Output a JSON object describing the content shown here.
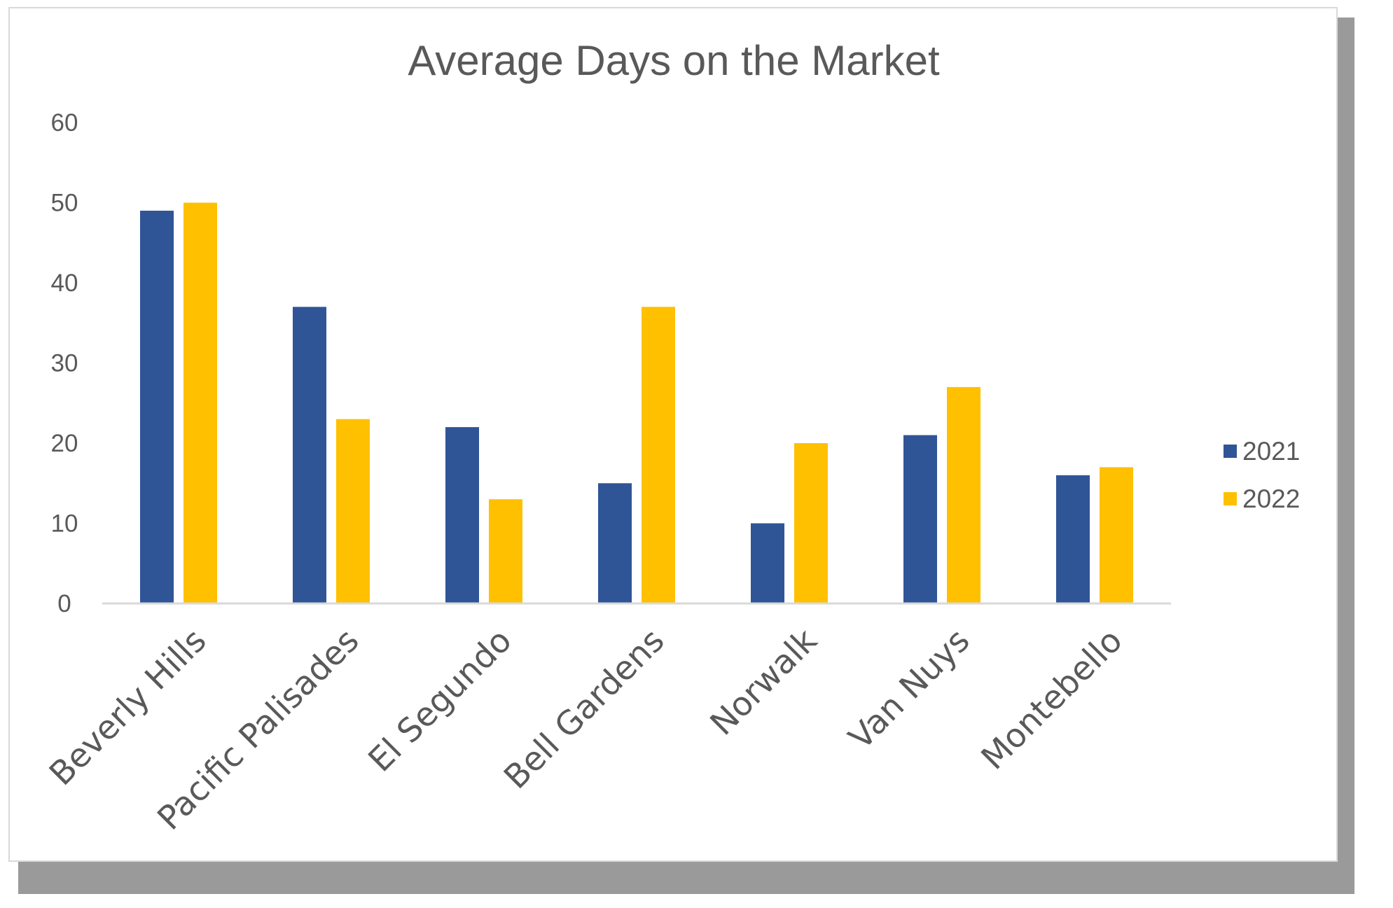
{
  "chart_data": {
    "type": "bar",
    "title": "Average Days on the Market",
    "xlabel": "",
    "ylabel": "",
    "categories": [
      "Beverly Hills",
      "Pacific Palisades",
      "El Segundo",
      "Bell Gardens",
      "Norwalk",
      "Van Nuys",
      "Montebello"
    ],
    "series": [
      {
        "name": "2021",
        "color": "#2f5597",
        "values": [
          49,
          37,
          22,
          15,
          10,
          21,
          16
        ]
      },
      {
        "name": "2022",
        "color": "#ffc000",
        "values": [
          50,
          23,
          13,
          37,
          20,
          27,
          17
        ]
      }
    ],
    "ylim": [
      0,
      60
    ],
    "yticks": [
      0,
      10,
      20,
      30,
      40,
      50,
      60
    ],
    "grid": false,
    "legend_position": "right"
  }
}
